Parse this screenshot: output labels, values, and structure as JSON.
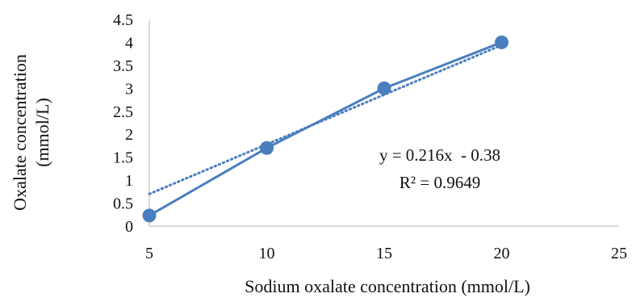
{
  "chart_data": {
    "type": "scatter",
    "xlabel": "Sodium oxalate concentration (mmol/L)",
    "ylabel_lines": [
      "Oxalate concentration",
      "(mmol/L)"
    ],
    "xlim": [
      5,
      25
    ],
    "ylim": [
      0,
      4.5
    ],
    "x_ticks": [
      "5",
      "10",
      "15",
      "20",
      "25"
    ],
    "y_ticks": [
      "0",
      "0.5",
      "1",
      "1.5",
      "2",
      "2.5",
      "3",
      "3.5",
      "4",
      "4.5"
    ],
    "series": [
      {
        "color": "#4a7ebf",
        "points": [
          {
            "x": 5,
            "y": 0.23
          },
          {
            "x": 10,
            "y": 1.7
          },
          {
            "x": 15,
            "y": 3.0
          },
          {
            "x": 20,
            "y": 4.0
          }
        ]
      }
    ],
    "trendline": {
      "style": "dotted",
      "slope": 0.216,
      "intercept": -0.38,
      "equation": "y = 0.216x  - 0.38",
      "r_squared": "R² = 0.9649"
    },
    "grid": false,
    "legend": "none"
  }
}
